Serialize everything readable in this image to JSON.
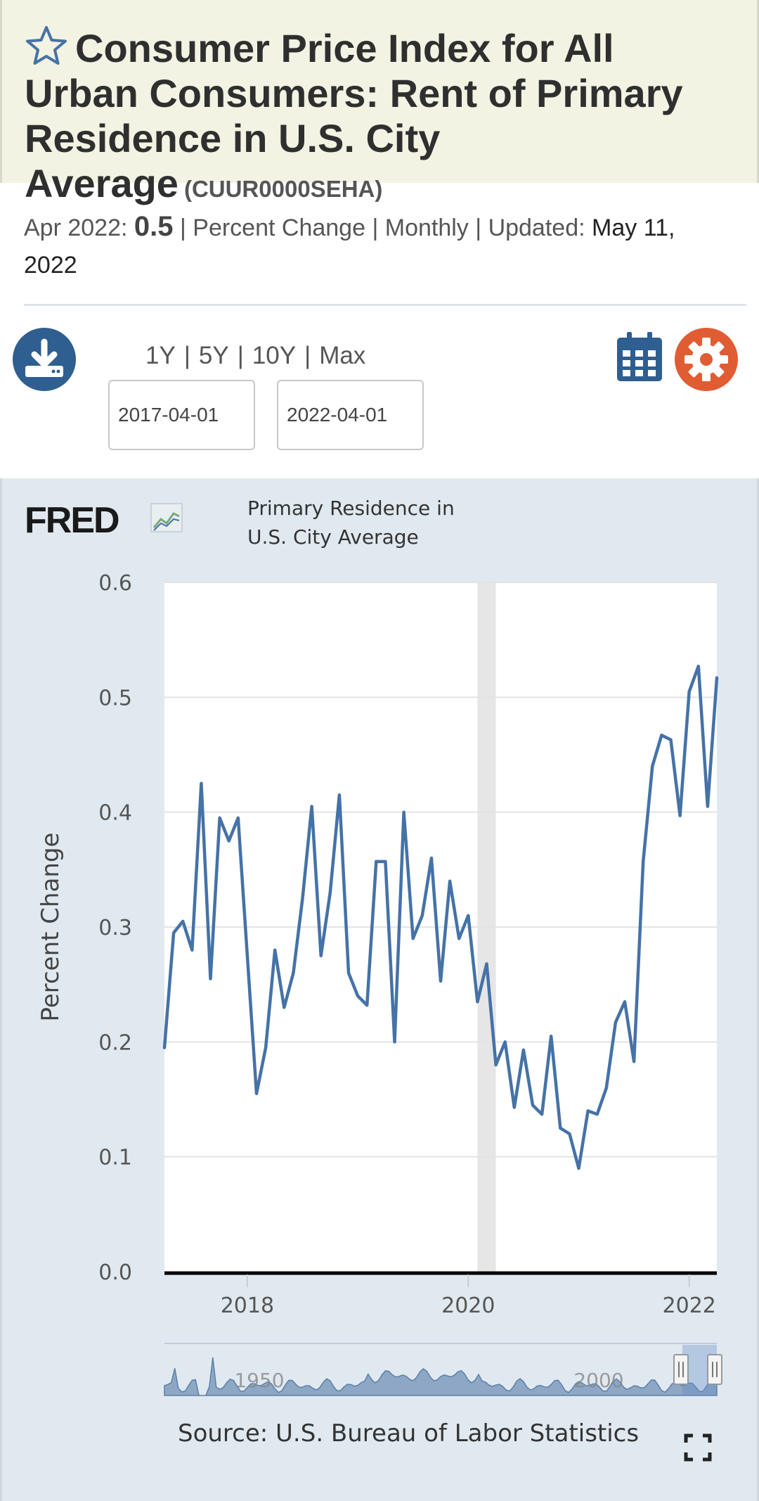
{
  "header": {
    "title": "Consumer Price Index for All Urban Consumers: Rent of Primary Residence in U.S. City Average",
    "series_id": "(CUUR0000SEHA)"
  },
  "meta": {
    "period": "Apr 2022:",
    "value": "0.5",
    "sep1": "|",
    "units": "Percent Change",
    "sep2": "|",
    "frequency": "Monthly",
    "sep3": "|",
    "updated_label": "Updated:",
    "updated_date": "May 11, 2022"
  },
  "controls": {
    "range_1y": "1Y",
    "range_5y": "5Y",
    "range_10y": "10Y",
    "range_max": "Max",
    "start_date": "2017-04-01",
    "end_date": "2022-04-01"
  },
  "chart": {
    "brand": "FRED",
    "title_line1": "Primary Residence in",
    "title_line2": "U.S. City Average",
    "source": "Source: U.S. Bureau of Labor Statistics",
    "line_color": "#4572a7",
    "recession_color": "#e6e6e6"
  },
  "chart_data": {
    "type": "line",
    "title": "Primary Residence in U.S. City Average",
    "xlabel": "",
    "ylabel": "Percent Change",
    "ylim": [
      0,
      0.6
    ],
    "yticks": [
      "0.0",
      "0.1",
      "0.2",
      "0.3",
      "0.4",
      "0.5",
      "0.6"
    ],
    "xticks": [
      "2018",
      "2020",
      "2022"
    ],
    "x_start": "2017-04",
    "x_end": "2022-04",
    "recession": [
      "2020-02",
      "2020-04"
    ],
    "series": [
      {
        "name": "CUUR0000SEHA",
        "values": [
          0.195,
          0.295,
          0.305,
          0.28,
          0.425,
          0.255,
          0.395,
          0.375,
          0.395,
          0.275,
          0.155,
          0.195,
          0.28,
          0.23,
          0.26,
          0.325,
          0.405,
          0.275,
          0.33,
          0.415,
          0.26,
          0.24,
          0.232,
          0.357,
          0.357,
          0.2,
          0.4,
          0.29,
          0.31,
          0.36,
          0.253,
          0.34,
          0.29,
          0.31,
          0.235,
          0.268,
          0.18,
          0.2,
          0.143,
          0.193,
          0.145,
          0.137,
          0.205,
          0.125,
          0.12,
          0.09,
          0.14,
          0.137,
          0.16,
          0.217,
          0.235,
          0.183,
          0.357,
          0.44,
          0.467,
          0.463,
          0.397,
          0.505,
          0.527,
          0.405,
          0.517
        ]
      }
    ],
    "navigator": {
      "ticks": [
        "1950",
        "2000"
      ]
    }
  }
}
